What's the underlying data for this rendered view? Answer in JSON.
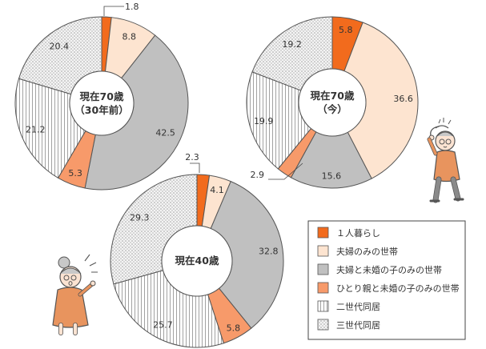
{
  "categories": [
    "１人暮らし",
    "夫婦のみの世帯",
    "夫婦と未婚の子のみの世帯",
    "ひとり親と未婚の子のみの世帯",
    "二世代同居",
    "三世代同居"
  ],
  "colors": {
    "single": "#f26b1d",
    "couple": "#fde4d0",
    "couple_child": "#c0c0c0",
    "single_parent": "#f79a6a",
    "two_gen": "vertical-stripes",
    "three_gen": "dotted-gray",
    "outline": "#555555"
  },
  "chart_data": [
    {
      "type": "pie",
      "center_label": [
        "現在70歳",
        "（30年前）"
      ],
      "categories": [
        "１人暮らし",
        "夫婦のみの世帯",
        "夫婦と未婚の子のみの世帯",
        "ひとり親と未婚の子のみの世帯",
        "二世代同居",
        "三世代同居"
      ],
      "values": [
        1.8,
        8.8,
        42.5,
        5.3,
        21.2,
        20.4
      ],
      "value_labels": [
        "1.8",
        "8.8",
        "42.5",
        "5.3",
        "21.2",
        "20.4"
      ]
    },
    {
      "type": "pie",
      "center_label": [
        "現在70歳",
        "（今）"
      ],
      "categories": [
        "１人暮らし",
        "夫婦のみの世帯",
        "夫婦と未婚の子のみの世帯",
        "ひとり親と未婚の子のみの世帯",
        "二世代同居",
        "三世代同居"
      ],
      "values": [
        5.8,
        36.6,
        15.6,
        2.9,
        19.9,
        19.2
      ],
      "value_labels": [
        "5.8",
        "36.6",
        "15.6",
        "2.9",
        "19.9",
        "19.2"
      ]
    },
    {
      "type": "pie",
      "center_label": [
        "現在40歳"
      ],
      "categories": [
        "１人暮らし",
        "夫婦のみの世帯",
        "夫婦と未婚の子のみの世帯",
        "ひとり親と未婚の子のみの世帯",
        "二世代同居",
        "三世代同居"
      ],
      "values": [
        2.3,
        4.1,
        32.8,
        5.8,
        25.7,
        29.3
      ],
      "value_labels": [
        "2.3",
        "4.1",
        "32.8",
        "5.8",
        "25.7",
        "29.3"
      ]
    }
  ],
  "legend": {
    "items": [
      {
        "label": "１人暮らし",
        "swatch": "single"
      },
      {
        "label": "夫婦のみの世帯",
        "swatch": "couple"
      },
      {
        "label": "夫婦と未婚の子のみの世帯",
        "swatch": "couple_child"
      },
      {
        "label": "ひとり親と未婚の子のみの世帯",
        "swatch": "single_parent"
      },
      {
        "label": "二世代同居",
        "swatch": "two_gen"
      },
      {
        "label": "三世代同居",
        "swatch": "three_gen"
      }
    ]
  },
  "illustrations": [
    "elderly-man-scratching-head-icon",
    "elderly-woman-surprised-icon"
  ]
}
